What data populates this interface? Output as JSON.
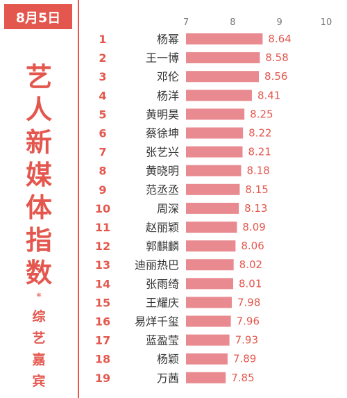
{
  "date_badge": "8月5日",
  "title_chars": [
    "艺",
    "人",
    "新",
    "媒",
    "体",
    "指",
    "数"
  ],
  "asterisk": "*",
  "subtitle_chars": [
    "综",
    "艺",
    "嘉",
    "宾"
  ],
  "colors": {
    "accent": "#e4574e",
    "bar": "#e88a8f"
  },
  "chart_data": {
    "type": "bar",
    "orientation": "horizontal",
    "title": "艺人新媒体指数",
    "xlim": [
      7,
      10
    ],
    "xticks": [
      "7",
      "8",
      "9",
      "10"
    ],
    "rows": [
      {
        "rank": "1",
        "name": "杨幂",
        "value": 8.64,
        "label": "8.64"
      },
      {
        "rank": "2",
        "name": "王一博",
        "value": 8.58,
        "label": "8.58"
      },
      {
        "rank": "3",
        "name": "邓伦",
        "value": 8.56,
        "label": "8.56"
      },
      {
        "rank": "4",
        "name": "杨洋",
        "value": 8.41,
        "label": "8.41"
      },
      {
        "rank": "5",
        "name": "黄明昊",
        "value": 8.25,
        "label": "8.25"
      },
      {
        "rank": "6",
        "name": "蔡徐坤",
        "value": 8.22,
        "label": "8.22"
      },
      {
        "rank": "7",
        "name": "张艺兴",
        "value": 8.21,
        "label": "8.21"
      },
      {
        "rank": "8",
        "name": "黄晓明",
        "value": 8.18,
        "label": "8.18"
      },
      {
        "rank": "9",
        "name": "范丞丞",
        "value": 8.15,
        "label": "8.15"
      },
      {
        "rank": "10",
        "name": "周深",
        "value": 8.13,
        "label": "8.13"
      },
      {
        "rank": "11",
        "name": "赵丽颖",
        "value": 8.09,
        "label": "8.09"
      },
      {
        "rank": "12",
        "name": "郭麒麟",
        "value": 8.06,
        "label": "8.06"
      },
      {
        "rank": "13",
        "name": "迪丽热巴",
        "value": 8.02,
        "label": "8.02"
      },
      {
        "rank": "14",
        "name": "张雨绮",
        "value": 8.01,
        "label": "8.01"
      },
      {
        "rank": "15",
        "name": "王耀庆",
        "value": 7.98,
        "label": "7.98"
      },
      {
        "rank": "16",
        "name": "易烊千玺",
        "value": 7.96,
        "label": "7.96"
      },
      {
        "rank": "17",
        "name": "蓝盈莹",
        "value": 7.93,
        "label": "7.93"
      },
      {
        "rank": "18",
        "name": "杨颖",
        "value": 7.89,
        "label": "7.89"
      },
      {
        "rank": "19",
        "name": "万茜",
        "value": 7.85,
        "label": "7.85"
      }
    ]
  }
}
